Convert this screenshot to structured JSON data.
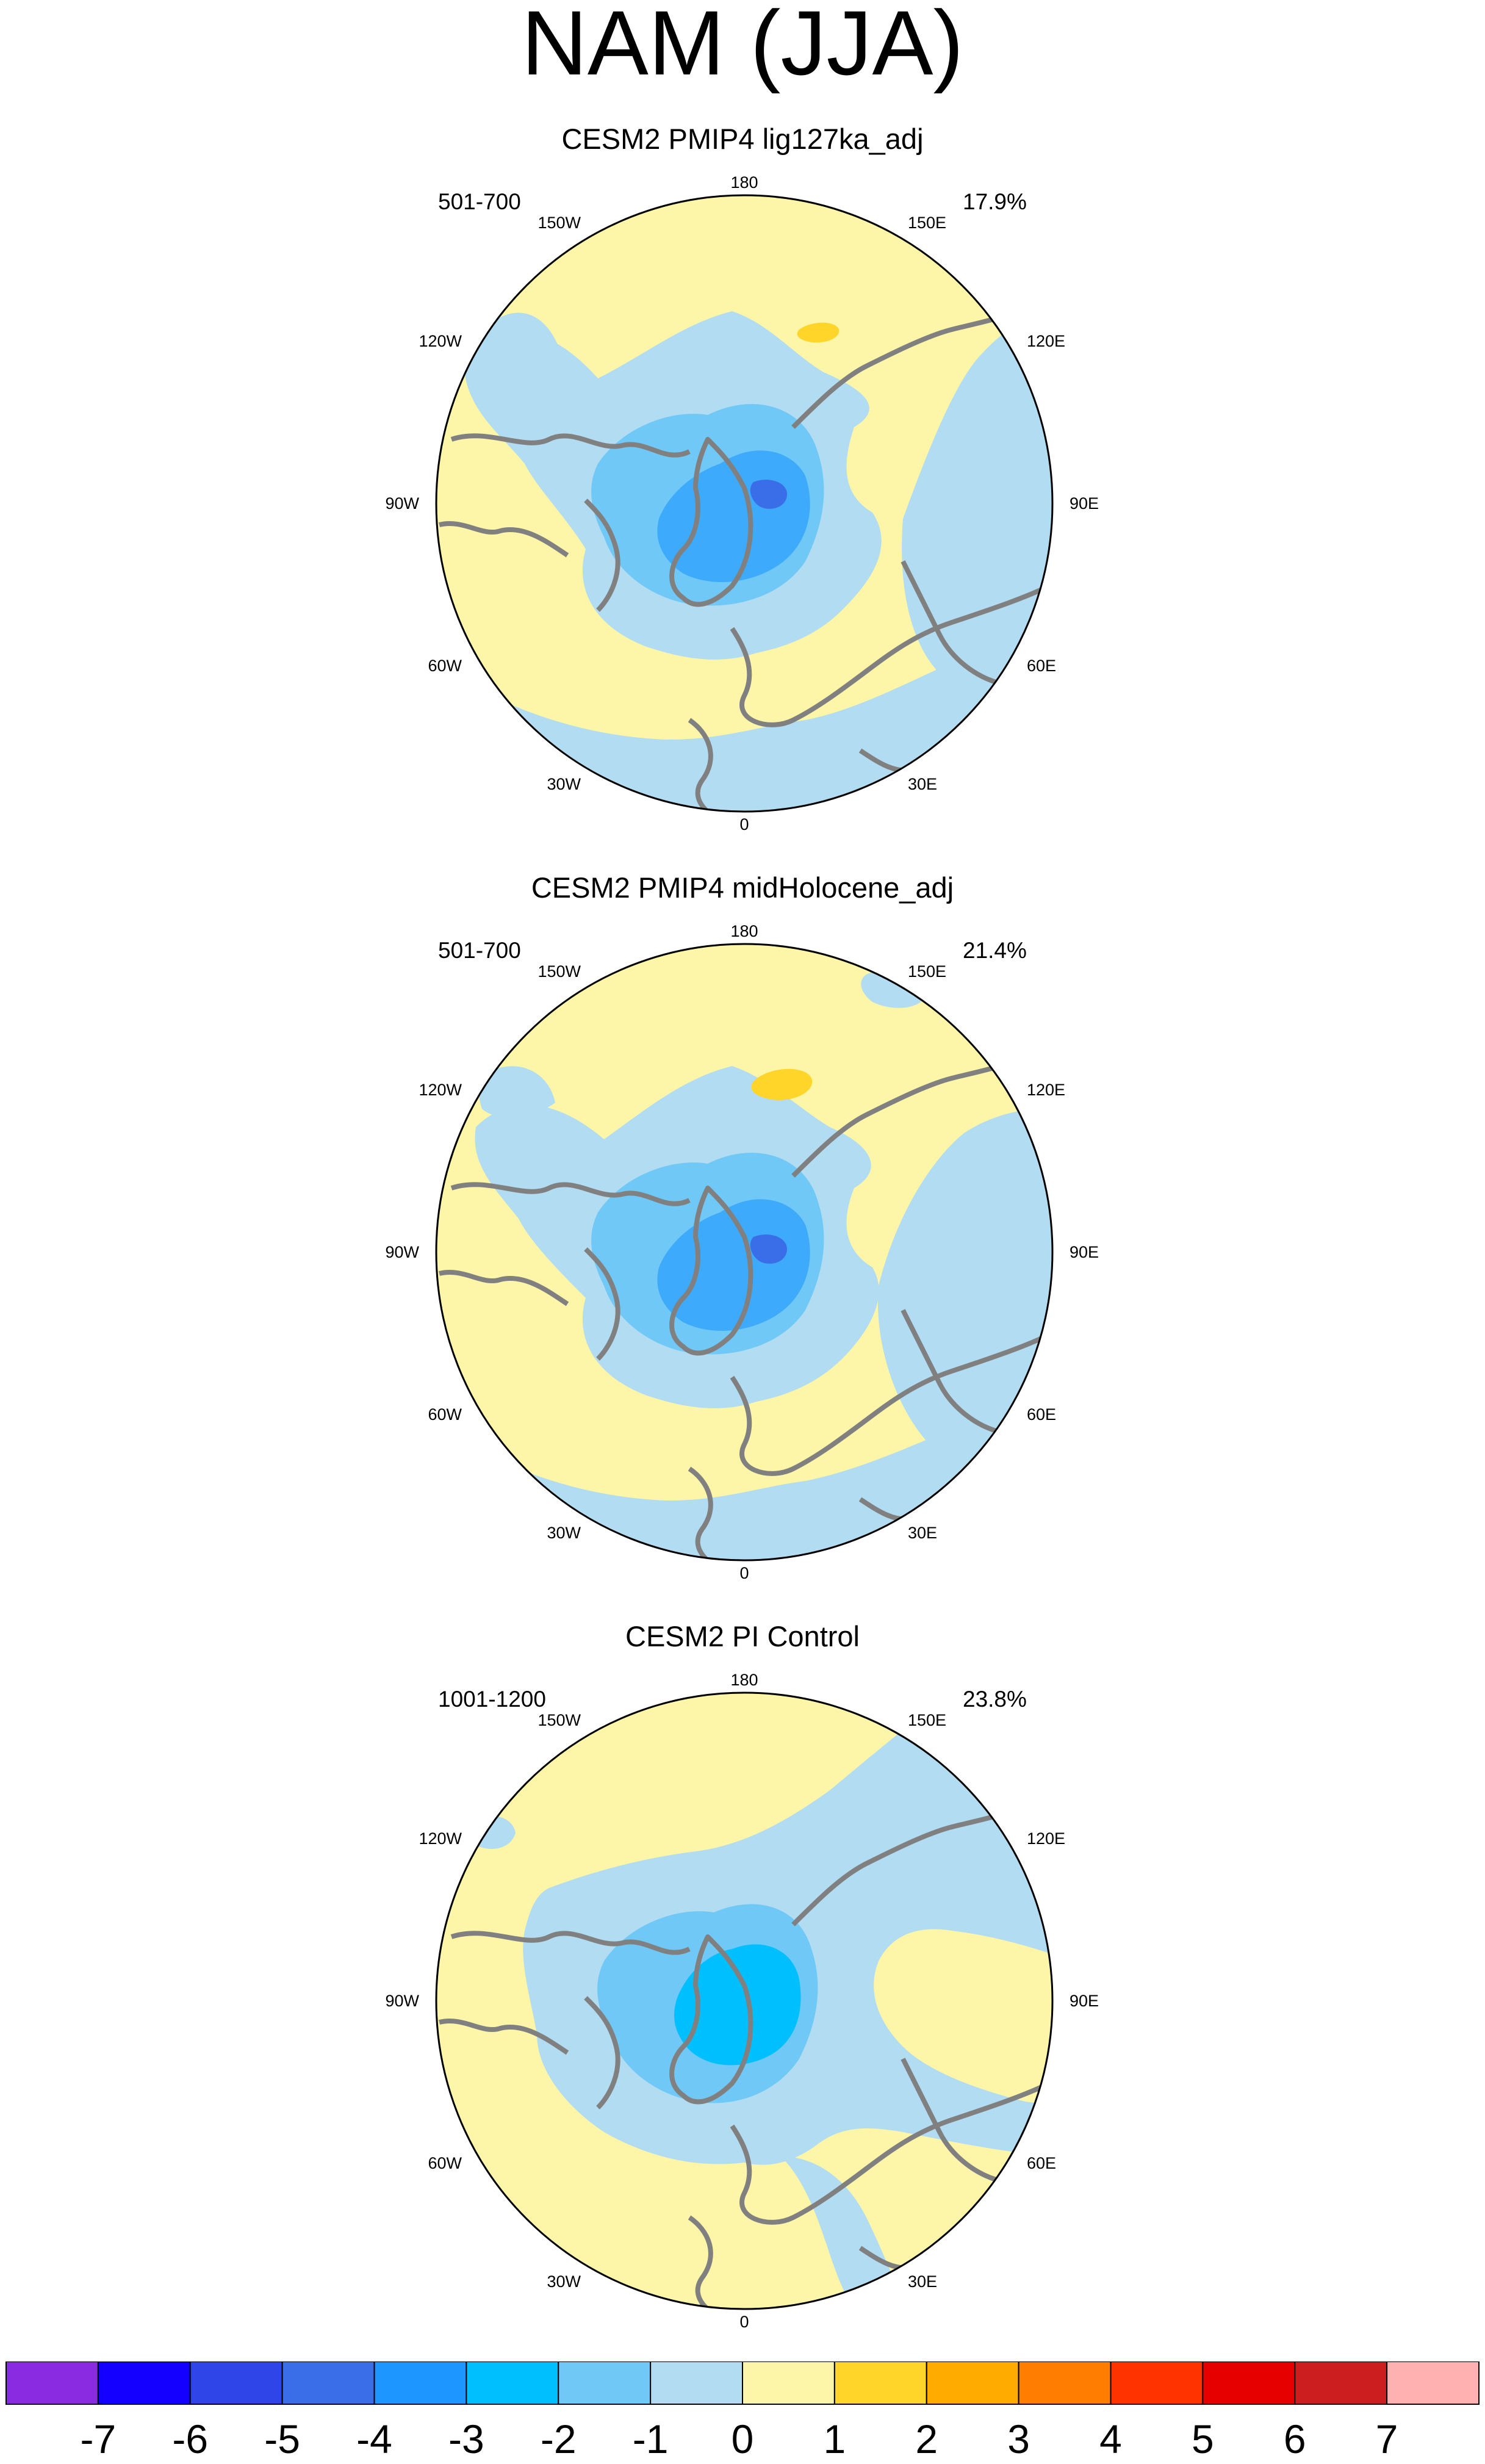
{
  "title": "NAM (JJA)",
  "chart_data": {
    "type": "heatmap",
    "projection": "north polar stereographic",
    "variable": "NAM pattern, JJA",
    "colorbar": {
      "labels": [
        "-7",
        "-6",
        "-5",
        "-4",
        "-3",
        "-2",
        "-1",
        "0",
        "1",
        "2",
        "3",
        "4",
        "5",
        "6",
        "7"
      ],
      "colors": [
        "#8a2be2",
        "#1400ff",
        "#2f45e8",
        "#3a6ee8",
        "#1e96ff",
        "#00bfff",
        "#6fc8f5",
        "#b2dcf2",
        "#fdf6a8",
        "#ffd52a",
        "#ffab00",
        "#ff7d00",
        "#ff3300",
        "#e60000",
        "#cc1e1e",
        "#ffb0b0"
      ]
    },
    "longitude_labels": [
      "180",
      "150E",
      "120E",
      "90E",
      "60E",
      "30E",
      "0",
      "30W",
      "60W",
      "90W",
      "120W",
      "150W"
    ],
    "panels": [
      {
        "title": "CESM2 PMIP4 lig127ka_adj",
        "years": "501-700",
        "percent_variance": "17.9%",
        "arctic_center_min": -4,
        "arctic_range": [
          -4,
          -1
        ],
        "pacific_max": 1,
        "atlantic_range": [
          -1,
          0
        ]
      },
      {
        "title": "CESM2 PMIP4 midHolocene_adj",
        "years": "501-700",
        "percent_variance": "21.4%",
        "arctic_center_min": -4,
        "arctic_range": [
          -4,
          -1
        ],
        "pacific_max": 1,
        "atlantic_range": [
          -1,
          0
        ]
      },
      {
        "title": "CESM2 PI Control",
        "years": "1001-1200",
        "percent_variance": "23.8%",
        "arctic_center_min": -3,
        "arctic_range": [
          -3,
          -1
        ],
        "pacific_max": 0,
        "atlantic_range": [
          -1,
          0
        ]
      }
    ]
  }
}
